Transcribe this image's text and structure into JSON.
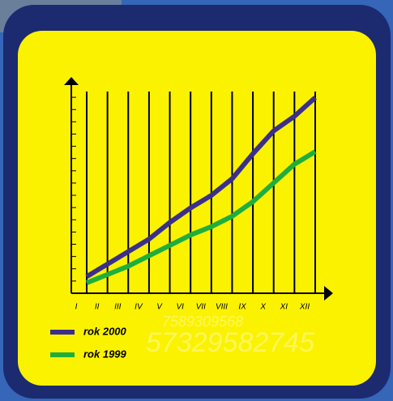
{
  "chart_data": {
    "type": "line",
    "categories": [
      "I",
      "II",
      "III",
      "IV",
      "V",
      "VI",
      "VII",
      "VIII",
      "IX",
      "X",
      "XI",
      "XII"
    ],
    "series": [
      {
        "name": "rok 2000",
        "color": "#3b2f8c",
        "values": [
          8,
          14,
          20,
          26,
          34,
          41,
          47,
          55,
          67,
          78,
          85,
          94
        ]
      },
      {
        "name": "rok 1999",
        "color": "#1fae3c",
        "values": [
          5,
          9,
          13,
          18,
          23,
          28,
          32,
          37,
          44,
          53,
          62,
          68
        ]
      }
    ],
    "ylim": [
      0,
      100
    ],
    "watermarks": [
      "7589309568",
      "57329582745"
    ]
  }
}
